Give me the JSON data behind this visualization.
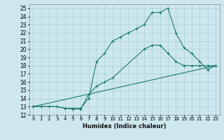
{
  "xlabel": "Humidex (Indice chaleur)",
  "xlim": [
    -0.5,
    23.5
  ],
  "ylim": [
    12,
    25.5
  ],
  "yticks": [
    12,
    13,
    14,
    15,
    16,
    17,
    18,
    19,
    20,
    21,
    22,
    23,
    24,
    25
  ],
  "xticks": [
    0,
    1,
    2,
    3,
    4,
    5,
    6,
    7,
    8,
    9,
    10,
    11,
    12,
    13,
    14,
    15,
    16,
    17,
    18,
    19,
    20,
    21,
    22,
    23
  ],
  "bg_color": "#cce8ee",
  "grid_color": "#aacdd6",
  "line_color": "#1e7a6d",
  "series": [
    {
      "x": [
        0,
        1,
        2,
        3,
        4,
        5,
        6,
        7,
        8,
        9,
        10,
        11,
        12,
        13,
        14,
        15,
        16,
        17,
        18,
        19,
        20,
        21,
        22,
        23
      ],
      "y": [
        13,
        13,
        13,
        13,
        12.8,
        12.8,
        12.8,
        14,
        18.5,
        19.5,
        21,
        21.5,
        22,
        22.5,
        23,
        24.5,
        24.5,
        25,
        22,
        20.2,
        19.5,
        18.5,
        17.5,
        18
      ]
    },
    {
      "x": [
        0,
        1,
        2,
        3,
        4,
        5,
        6,
        7,
        8,
        9,
        10,
        14,
        15,
        16,
        17,
        18,
        19,
        20,
        21,
        22,
        23
      ],
      "y": [
        13,
        13,
        13,
        13,
        12.8,
        12.7,
        12.7,
        14.5,
        15.5,
        16,
        16.5,
        20,
        20.5,
        20.5,
        19.5,
        18.5,
        18,
        18,
        18,
        18,
        18
      ]
    },
    {
      "x": [
        0,
        23
      ],
      "y": [
        13,
        18
      ]
    }
  ]
}
